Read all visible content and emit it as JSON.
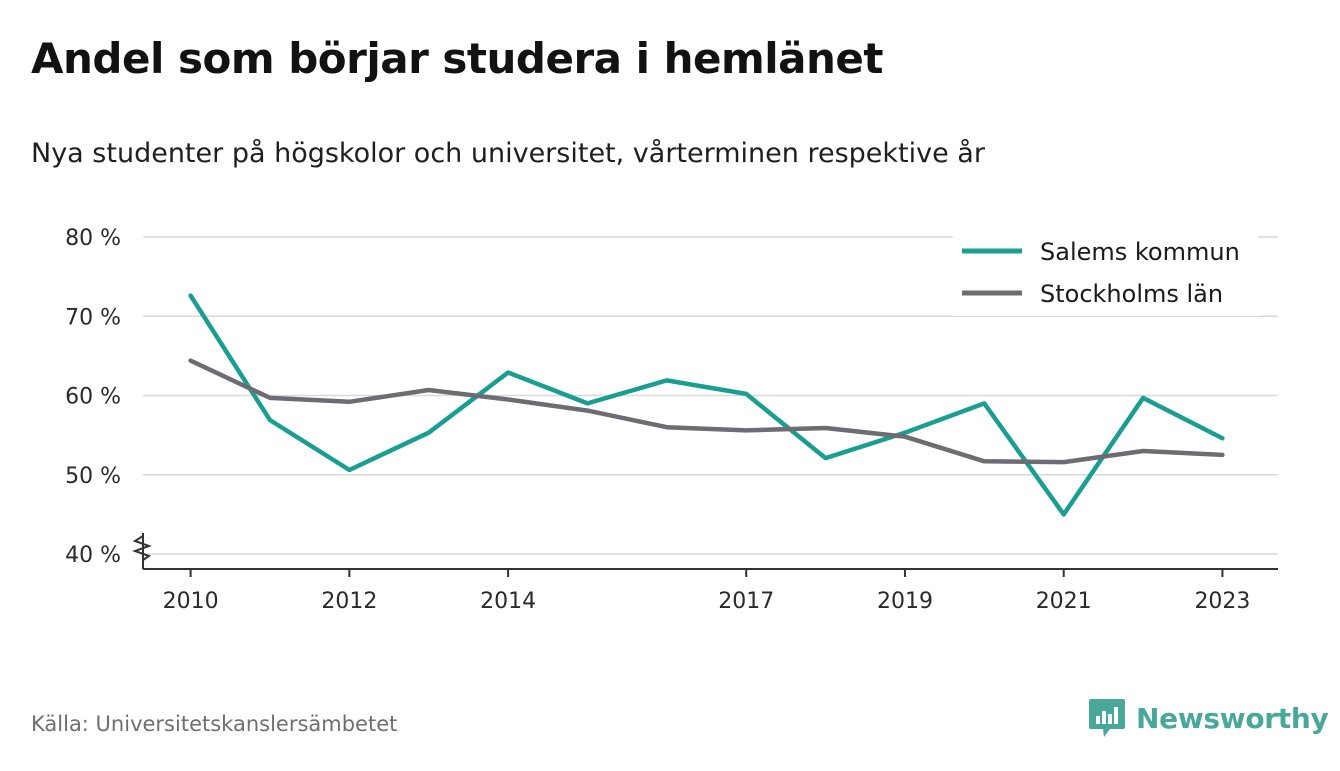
{
  "title": "Andel som börjar studera i hemlänet",
  "subtitle": "Nya studenter på högskolor och universitet, vårterminen respektive år",
  "source": "Källa: Universitetskanslersämbetet",
  "brand": {
    "name": "Newsworthy",
    "icon": "newsworthy-logo-icon",
    "color": "#4aa89b"
  },
  "chart_data": {
    "type": "line",
    "x": [
      2010,
      2011,
      2012,
      2013,
      2014,
      2015,
      2016,
      2017,
      2018,
      2019,
      2020,
      2021,
      2022,
      2023
    ],
    "x_tick_labels": [
      "2010",
      "2012",
      "2014",
      "2017",
      "2019",
      "2021",
      "2023"
    ],
    "x_ticks": [
      2010,
      2012,
      2014,
      2017,
      2019,
      2021,
      2023
    ],
    "y_ticks": [
      40,
      50,
      60,
      70,
      80
    ],
    "y_tick_labels": [
      "40 %",
      "50 %",
      "60 %",
      "70 %",
      "80 %"
    ],
    "ylim": [
      40,
      80
    ],
    "xlim": [
      2009.4,
      2023.7
    ],
    "y_axis_break": true,
    "grid": true,
    "legend_position": "top-right",
    "series": [
      {
        "name": "Salems kommun",
        "color": "#1a9e92",
        "values": [
          72.6,
          56.9,
          50.6,
          55.3,
          62.9,
          59.0,
          61.9,
          60.2,
          52.1,
          55.3,
          59.0,
          45.0,
          59.7,
          54.6
        ]
      },
      {
        "name": "Stockholms län",
        "color": "#6e6c73",
        "values": [
          64.4,
          59.7,
          59.2,
          60.7,
          59.5,
          58.1,
          56.0,
          55.6,
          55.9,
          54.8,
          51.7,
          51.6,
          53.0,
          52.5
        ]
      }
    ]
  }
}
